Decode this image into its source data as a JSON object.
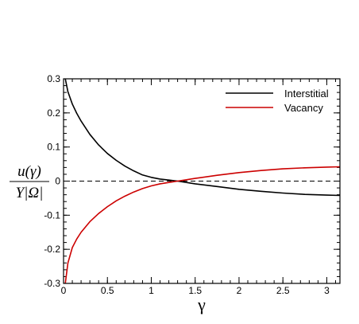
{
  "chart_data": {
    "type": "line",
    "title": "",
    "xlabel": "γ",
    "ylabel": {
      "numerator": "u(γ)",
      "denominator": "Y|Ω|"
    },
    "xlim": [
      0,
      3.15
    ],
    "ylim": [
      -0.3,
      0.3
    ],
    "x_ticks": [
      "0",
      "0.5",
      "1",
      "1.5",
      "2",
      "2.5",
      "3"
    ],
    "y_ticks": [
      "0.3",
      "0.2",
      "0.1",
      "0",
      "-0.1",
      "-0.2",
      "-0.3"
    ],
    "reference_line": {
      "y": 0,
      "style": "dashed"
    },
    "legend_position": "top-right",
    "series": [
      {
        "name": "Interstitial",
        "color": "#000000",
        "x": [
          0.02,
          0.05,
          0.1,
          0.15,
          0.2,
          0.3,
          0.4,
          0.5,
          0.6,
          0.7,
          0.8,
          0.9,
          1.0,
          1.1,
          1.2,
          1.3,
          1.4,
          1.5,
          1.75,
          2.0,
          2.25,
          2.5,
          2.75,
          3.0,
          3.15
        ],
        "values": [
          0.3,
          0.262,
          0.226,
          0.199,
          0.176,
          0.137,
          0.106,
          0.081,
          0.061,
          0.044,
          0.03,
          0.018,
          0.011,
          0.006,
          0.003,
          0.0,
          -0.004,
          -0.008,
          -0.016,
          -0.024,
          -0.03,
          -0.035,
          -0.039,
          -0.041,
          -0.042
        ]
      },
      {
        "name": "Vacancy",
        "color": "#cc0000",
        "x": [
          0.02,
          0.05,
          0.1,
          0.15,
          0.2,
          0.3,
          0.4,
          0.5,
          0.6,
          0.7,
          0.8,
          0.9,
          1.0,
          1.1,
          1.2,
          1.3,
          1.4,
          1.5,
          1.75,
          2.0,
          2.25,
          2.5,
          2.75,
          3.0,
          3.15
        ],
        "values": [
          -0.3,
          -0.24,
          -0.195,
          -0.17,
          -0.15,
          -0.119,
          -0.095,
          -0.075,
          -0.058,
          -0.044,
          -0.032,
          -0.022,
          -0.014,
          -0.008,
          -0.004,
          0.0,
          0.004,
          0.008,
          0.017,
          0.025,
          0.031,
          0.036,
          0.039,
          0.041,
          0.042
        ]
      }
    ]
  }
}
